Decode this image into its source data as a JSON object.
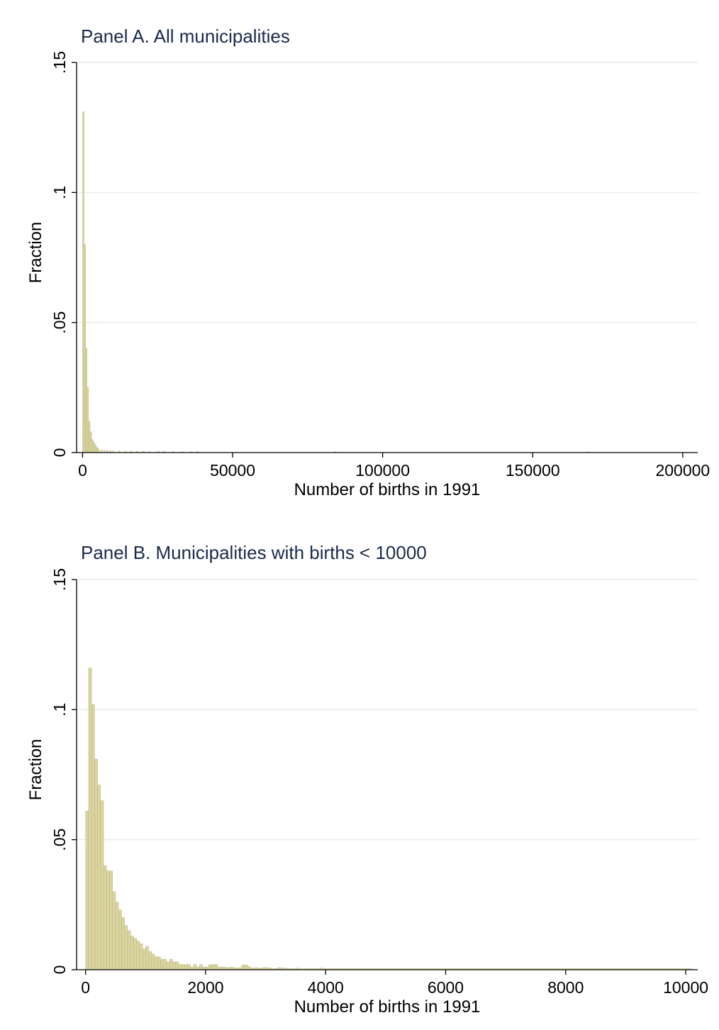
{
  "chart_data": [
    {
      "type": "bar",
      "title": "Panel A. All municipalities",
      "xlabel": "Number of births in 1991",
      "ylabel": "Fraction",
      "xlim": [
        -2000,
        205000
      ],
      "ylim": [
        0,
        0.15
      ],
      "xticks": [
        0,
        50000,
        100000,
        150000,
        200000
      ],
      "xtick_labels": [
        "0",
        "50000",
        "100000",
        "150000",
        "200000"
      ],
      "yticks": [
        0,
        0.05,
        0.1,
        0.15
      ],
      "ytick_labels": [
        "0",
        ".05",
        ".1",
        ".15"
      ],
      "grid": true,
      "bin_width": 500,
      "x": [
        0,
        500,
        1000,
        1500,
        2000,
        2500,
        3000,
        3500,
        4000,
        4500,
        5000,
        6000,
        7000,
        8000,
        9000,
        10000,
        12000,
        14000,
        16000,
        18000,
        20000,
        22000,
        25000,
        27000,
        30000,
        33000,
        36000,
        38000,
        84000,
        168000
      ],
      "values": [
        0.131,
        0.08,
        0.04,
        0.025,
        0.012,
        0.008,
        0.005,
        0.004,
        0.003,
        0.002,
        0.0015,
        0.001,
        0.0009,
        0.0008,
        0.0007,
        0.0006,
        0.0006,
        0.0005,
        0.0005,
        0.0005,
        0.0005,
        0.0004,
        0.0005,
        0.0005,
        0.0004,
        0.0004,
        0.0004,
        0.0004,
        0.0004,
        0.0004
      ]
    },
    {
      "type": "bar",
      "title": "Panel B. Municipalities with births < 10000",
      "xlabel": "Number of births in 1991",
      "ylabel": "Fraction",
      "xlim": [
        -150,
        10200
      ],
      "ylim": [
        0,
        0.15
      ],
      "xticks": [
        0,
        2000,
        4000,
        6000,
        8000,
        10000
      ],
      "xtick_labels": [
        "0",
        "2000",
        "4000",
        "6000",
        "8000",
        "10000"
      ],
      "yticks": [
        0,
        0.05,
        0.1,
        0.15
      ],
      "ytick_labels": [
        "0",
        ".05",
        ".1",
        ".15"
      ],
      "grid": true,
      "bin_width": 50,
      "start": 0,
      "values": [
        0.061,
        0.116,
        0.102,
        0.081,
        0.071,
        0.065,
        0.04,
        0.038,
        0.038,
        0.03,
        0.026,
        0.023,
        0.02,
        0.017,
        0.015,
        0.013,
        0.012,
        0.011,
        0.01,
        0.008,
        0.009,
        0.007,
        0.006,
        0.005,
        0.005,
        0.004,
        0.004,
        0.003,
        0.004,
        0.003,
        0.003,
        0.002,
        0.002,
        0.002,
        0.002,
        0.001,
        0.002,
        0.001,
        0.002,
        0.001,
        0.001,
        0.002,
        0.002,
        0.002,
        0.001,
        0.001,
        0.001,
        0.0008,
        0.001,
        0.0008,
        0.0006,
        0.0008,
        0.0018,
        0.0018,
        0.0012,
        0.0006,
        0.0008,
        0.0006,
        0.0006,
        0.0008,
        0.0008,
        0.0006,
        0.0004,
        0.0004,
        0.0008,
        0.0006,
        0.0006,
        0.0004,
        0.0004,
        0.0004,
        0.0006,
        0.0004,
        0.0004,
        0.0004,
        0.0004,
        0.0004,
        0.0004,
        0.0004,
        0.0006,
        0.0004,
        0.0004,
        0.0004,
        0.0004,
        0.0004,
        0.0004,
        0.0004,
        0.0004,
        0.0004,
        0.0004,
        0.0004,
        0.0004,
        0.0004,
        0.0004,
        0.0004,
        0.0004,
        0.0004,
        0.0004,
        0.0004,
        0.0004,
        0.0004,
        0.0004,
        0.0004,
        0.0004,
        0.0004,
        0.0004,
        0.0004,
        0.0004,
        0.0004,
        0.0004,
        0.0004,
        0.0004,
        0.0004,
        0.0004,
        0.0004,
        0.0004,
        0.0004,
        0.0004,
        0.0004,
        0.0004,
        0.0004,
        0.0004,
        0.0004,
        0.0004,
        0.0004,
        0.0004,
        0.0004,
        0.0004,
        0.0004,
        0.0004,
        0.0004,
        0.0004,
        0.0004,
        0.0004,
        0.0004,
        0.0004,
        0.0004,
        0.0004,
        0.0004,
        0.0004,
        0.0004,
        0.0004,
        0.0004,
        0.0004,
        0.0004,
        0.0004,
        0.0004,
        0.0004,
        0.0004,
        0.0004,
        0.0004,
        0.0004,
        0.0004,
        0.0004,
        0.0004,
        0.0004,
        0.0004,
        0.0004,
        0.0004,
        0.0004,
        0.0004,
        0.0004,
        0.0004,
        0.0004,
        0.0004,
        0.0004,
        0.0004,
        0.0004,
        0.0004,
        0.0004,
        0.0004,
        0.0004,
        0.0004,
        0.0004,
        0.0004,
        0.0004,
        0.0004,
        0.0004,
        0.0004,
        0.0004,
        0.0004,
        0.0004,
        0.0004,
        0.0004,
        0.0004,
        0.0004,
        0.0004,
        0.0004,
        0.0004,
        0.0004,
        0.0004,
        0.0004,
        0.0004,
        0.0004,
        0.0004,
        0.0004,
        0.0004,
        0.0004,
        0.0004,
        0.0004,
        0.0004,
        0.0004,
        0.0004
      ]
    }
  ],
  "colors": {
    "bar_fill": "#d9d4a0",
    "bar_edge": "#b8b178",
    "title": "#1a2b4c",
    "grid": "#e6ece9"
  }
}
